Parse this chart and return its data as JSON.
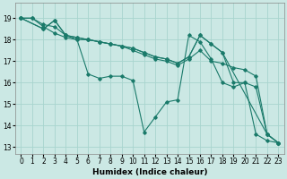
{
  "xlabel": "Humidex (Indice chaleur)",
  "bg_color": "#cbe8e4",
  "grid_color": "#a8d4ce",
  "line_color": "#1a7a6a",
  "xlim": [
    -0.5,
    23.5
  ],
  "ylim": [
    12.7,
    19.7
  ],
  "yticks": [
    13,
    14,
    15,
    16,
    17,
    18,
    19
  ],
  "xticks": [
    0,
    1,
    2,
    3,
    4,
    5,
    6,
    7,
    8,
    9,
    10,
    11,
    12,
    13,
    14,
    15,
    16,
    17,
    18,
    19,
    20,
    21,
    22,
    23
  ],
  "series": [
    {
      "x": [
        0,
        1,
        2,
        3,
        4,
        5,
        6,
        7,
        8,
        9,
        10,
        11,
        12,
        13,
        14,
        15,
        16,
        17,
        18,
        19,
        20,
        21,
        22,
        23
      ],
      "y": [
        19,
        19,
        18.7,
        18.6,
        18.2,
        18.0,
        16.4,
        16.2,
        16.3,
        16.3,
        16.1,
        13.7,
        14.4,
        15.1,
        15.2,
        18.2,
        17.9,
        17.1,
        16.0,
        15.8,
        16.0,
        13.6,
        13.3,
        13.2
      ]
    },
    {
      "x": [
        0,
        1,
        2,
        3,
        4,
        5,
        6,
        7,
        8,
        9,
        10,
        11,
        12,
        13,
        14,
        15,
        16,
        17,
        18,
        19,
        20,
        21,
        22,
        23
      ],
      "y": [
        19,
        19,
        18.6,
        18.3,
        18.1,
        18.0,
        18.0,
        17.9,
        17.8,
        17.7,
        17.5,
        17.3,
        17.1,
        17.0,
        16.8,
        17.1,
        17.5,
        17.0,
        16.9,
        16.7,
        16.6,
        16.3,
        13.6,
        13.2
      ]
    },
    {
      "x": [
        0,
        2,
        3,
        4,
        5,
        6,
        7,
        8,
        9,
        10,
        11,
        12,
        13,
        14,
        15,
        16,
        17,
        18,
        22,
        23
      ],
      "y": [
        19,
        18.5,
        18.9,
        18.2,
        18.1,
        18.0,
        17.9,
        17.8,
        17.7,
        17.6,
        17.4,
        17.2,
        17.1,
        16.9,
        17.2,
        18.2,
        17.8,
        17.4,
        13.6,
        13.2
      ]
    },
    {
      "x": [
        0,
        2,
        3,
        4,
        5,
        6,
        7,
        8,
        9,
        10,
        11,
        12,
        13,
        14,
        15,
        16,
        17,
        18,
        19,
        20,
        21,
        22,
        23
      ],
      "y": [
        19,
        18.5,
        18.9,
        18.2,
        18.1,
        18.0,
        17.9,
        17.8,
        17.7,
        17.6,
        17.4,
        17.2,
        17.1,
        16.9,
        17.2,
        18.2,
        17.8,
        17.4,
        16.0,
        16.0,
        15.8,
        13.6,
        13.2
      ]
    }
  ]
}
